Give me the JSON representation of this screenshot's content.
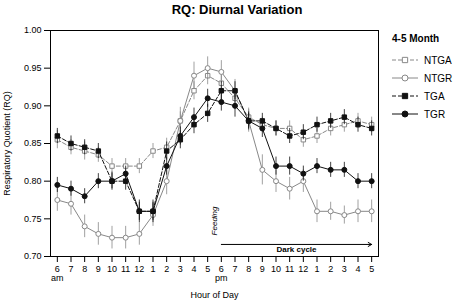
{
  "chart_data": {
    "type": "line",
    "title": "RQ: Diurnal Variation",
    "x_label": "Hour of Day",
    "y_label": "Respiratory Quotient (RQ)",
    "legend_title": "4-5 Month",
    "legend": "right",
    "grid": false,
    "ylim": [
      0.7,
      1.0
    ],
    "yticks": [
      {
        "value": 0.7,
        "label": "0.70"
      },
      {
        "value": 0.75,
        "label": "0.75"
      },
      {
        "value": 0.8,
        "label": "0.80"
      },
      {
        "value": 0.85,
        "label": "0.85"
      },
      {
        "value": 0.9,
        "label": "0.90"
      },
      {
        "value": 0.95,
        "label": "0.95"
      },
      {
        "value": 1.0,
        "label": "1.00"
      }
    ],
    "categories": [
      "6\nam",
      "7",
      "8",
      "9",
      "10",
      "11",
      "12",
      "1",
      "2",
      "3",
      "4",
      "5",
      "6\npm",
      "7",
      "8",
      "9",
      "10",
      "11",
      "12",
      "1",
      "2",
      "3",
      "4",
      "5"
    ],
    "series": [
      {
        "name": "NTGA",
        "color": "#888888",
        "line_style": "dashed",
        "marker": "open_square",
        "values": [
          0.855,
          0.845,
          0.84,
          0.835,
          0.82,
          0.82,
          0.82,
          0.84,
          0.845,
          0.88,
          0.92,
          0.94,
          0.93,
          0.91,
          0.885,
          0.875,
          0.87,
          0.87,
          0.855,
          0.86,
          0.87,
          0.875,
          0.88,
          0.875
        ],
        "errors": [
          0.012,
          0.01,
          0.012,
          0.01,
          0.01,
          0.01,
          0.01,
          0.01,
          0.012,
          0.012,
          0.012,
          0.012,
          0.012,
          0.012,
          0.012,
          0.01,
          0.01,
          0.01,
          0.01,
          0.01,
          0.01,
          0.01,
          0.01,
          0.01
        ]
      },
      {
        "name": "NTGR",
        "color": "#888888",
        "line_style": "solid",
        "marker": "open_circle",
        "values": [
          0.775,
          0.77,
          0.74,
          0.73,
          0.725,
          0.725,
          0.73,
          0.755,
          0.8,
          0.88,
          0.94,
          0.95,
          0.945,
          0.92,
          0.88,
          0.815,
          0.8,
          0.79,
          0.8,
          0.76,
          0.76,
          0.755,
          0.76,
          0.76
        ],
        "errors": [
          0.015,
          0.015,
          0.015,
          0.015,
          0.015,
          0.015,
          0.015,
          0.015,
          0.018,
          0.018,
          0.018,
          0.015,
          0.015,
          0.015,
          0.015,
          0.02,
          0.015,
          0.015,
          0.015,
          0.015,
          0.012,
          0.012,
          0.015,
          0.015
        ]
      },
      {
        "name": "TGA",
        "color": "#111111",
        "line_style": "dashed",
        "marker": "square",
        "values": [
          0.86,
          0.85,
          0.845,
          0.84,
          0.8,
          0.8,
          0.76,
          0.76,
          0.84,
          0.855,
          0.875,
          0.89,
          0.92,
          0.92,
          0.88,
          0.88,
          0.87,
          0.86,
          0.865,
          0.875,
          0.88,
          0.885,
          0.875,
          0.87
        ],
        "errors": [
          0.01,
          0.01,
          0.01,
          0.01,
          0.012,
          0.012,
          0.015,
          0.015,
          0.012,
          0.012,
          0.012,
          0.012,
          0.012,
          0.012,
          0.01,
          0.01,
          0.01,
          0.01,
          0.01,
          0.01,
          0.01,
          0.01,
          0.01,
          0.01
        ]
      },
      {
        "name": "TGR",
        "color": "#111111",
        "line_style": "solid",
        "marker": "circle",
        "values": [
          0.795,
          0.79,
          0.78,
          0.8,
          0.8,
          0.81,
          0.76,
          0.76,
          0.82,
          0.86,
          0.885,
          0.91,
          0.905,
          0.9,
          0.88,
          0.87,
          0.82,
          0.82,
          0.81,
          0.82,
          0.815,
          0.815,
          0.8,
          0.8
        ],
        "errors": [
          0.01,
          0.01,
          0.01,
          0.01,
          0.01,
          0.01,
          0.012,
          0.012,
          0.012,
          0.012,
          0.012,
          0.012,
          0.012,
          0.015,
          0.012,
          0.012,
          0.012,
          0.012,
          0.01,
          0.01,
          0.01,
          0.01,
          0.01,
          0.01
        ]
      }
    ],
    "annotations": [
      {
        "text": "Feeding",
        "x": 11.5,
        "y": 0.728
      },
      {
        "text": "Dark cycle",
        "x_start": 12,
        "x_end": 23,
        "y": 0.716
      }
    ]
  }
}
